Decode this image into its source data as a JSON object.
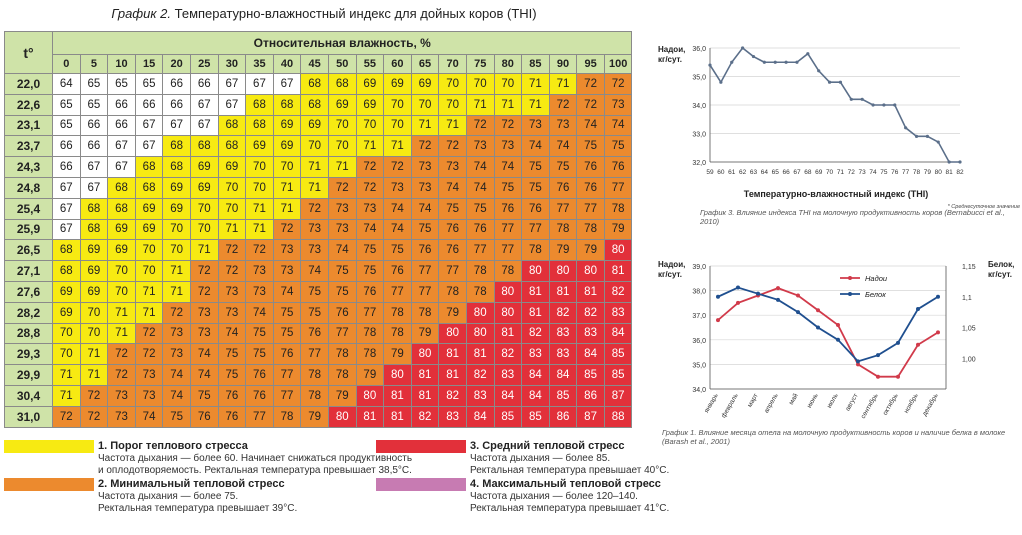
{
  "chart_data": [
    {
      "type": "table",
      "title_prefix": "График 2.",
      "title": "Температурно-влажностный индекс для дойных коров (THI)",
      "corner_label": "t°",
      "column_group_label": "Относительная влажность, %",
      "humidity": [
        0,
        5,
        10,
        15,
        20,
        25,
        30,
        35,
        40,
        45,
        50,
        55,
        60,
        65,
        70,
        75,
        80,
        85,
        90,
        95,
        100
      ],
      "temperatures": [
        "22,0",
        "22,6",
        "23,1",
        "23,7",
        "24,3",
        "24,8",
        "25,4",
        "25,9",
        "26,5",
        "27,1",
        "27,6",
        "28,2",
        "28,8",
        "29,3",
        "29,9",
        "30,4",
        "31,0"
      ],
      "rows": [
        [
          64,
          65,
          65,
          65,
          66,
          66,
          67,
          67,
          67,
          68,
          68,
          69,
          69,
          69,
          70,
          70,
          70,
          71,
          71,
          72,
          72
        ],
        [
          65,
          65,
          66,
          66,
          66,
          67,
          67,
          68,
          68,
          68,
          69,
          69,
          70,
          70,
          70,
          71,
          71,
          71,
          72,
          72,
          73
        ],
        [
          65,
          66,
          66,
          67,
          67,
          67,
          68,
          68,
          69,
          69,
          70,
          70,
          70,
          71,
          71,
          72,
          72,
          73,
          73,
          74,
          74
        ],
        [
          66,
          66,
          67,
          67,
          68,
          68,
          68,
          69,
          69,
          70,
          70,
          71,
          71,
          72,
          72,
          73,
          73,
          74,
          74,
          75,
          75
        ],
        [
          66,
          67,
          67,
          68,
          68,
          69,
          69,
          70,
          70,
          71,
          71,
          72,
          72,
          73,
          73,
          74,
          74,
          75,
          75,
          76,
          76
        ],
        [
          67,
          67,
          68,
          68,
          69,
          69,
          70,
          70,
          71,
          71,
          72,
          72,
          73,
          73,
          74,
          74,
          75,
          75,
          76,
          76,
          77
        ],
        [
          67,
          68,
          68,
          69,
          69,
          70,
          70,
          71,
          71,
          72,
          73,
          73,
          74,
          74,
          75,
          75,
          76,
          76,
          77,
          77,
          78
        ],
        [
          67,
          68,
          69,
          69,
          70,
          70,
          71,
          71,
          72,
          73,
          73,
          74,
          74,
          75,
          76,
          76,
          77,
          77,
          78,
          78,
          79
        ],
        [
          68,
          69,
          69,
          70,
          70,
          71,
          72,
          72,
          73,
          73,
          74,
          75,
          75,
          76,
          76,
          77,
          77,
          78,
          79,
          79,
          80
        ],
        [
          68,
          69,
          70,
          70,
          71,
          72,
          72,
          73,
          73,
          74,
          75,
          75,
          76,
          77,
          77,
          78,
          78,
          80,
          80,
          80,
          81
        ],
        [
          69,
          69,
          70,
          71,
          71,
          72,
          73,
          73,
          74,
          75,
          75,
          76,
          77,
          77,
          78,
          78,
          80,
          81,
          81,
          81,
          82
        ],
        [
          69,
          70,
          71,
          71,
          72,
          73,
          73,
          74,
          75,
          75,
          76,
          77,
          78,
          78,
          79,
          80,
          80,
          81,
          82,
          82,
          83
        ],
        [
          70,
          70,
          71,
          72,
          73,
          73,
          74,
          75,
          75,
          76,
          77,
          78,
          78,
          79,
          80,
          80,
          81,
          82,
          83,
          83,
          84
        ],
        [
          70,
          71,
          72,
          72,
          73,
          74,
          75,
          75,
          76,
          77,
          78,
          78,
          79,
          80,
          81,
          81,
          82,
          83,
          83,
          84,
          85
        ],
        [
          71,
          71,
          72,
          73,
          74,
          74,
          75,
          76,
          77,
          78,
          78,
          79,
          80,
          81,
          81,
          82,
          83,
          84,
          84,
          85,
          85
        ],
        [
          71,
          72,
          73,
          73,
          74,
          75,
          76,
          76,
          77,
          78,
          79,
          80,
          81,
          81,
          82,
          83,
          84,
          84,
          85,
          86,
          87
        ],
        [
          72,
          72,
          73,
          74,
          75,
          76,
          76,
          77,
          78,
          79,
          80,
          81,
          81,
          82,
          83,
          84,
          85,
          85,
          86,
          87,
          88
        ]
      ],
      "zone_colors": [
        "#ffffff",
        "#f7ea12",
        "#ec8a2e",
        "#e2303a",
        "#c77bb2"
      ],
      "legend": [
        {
          "title": "1. Порог теплового стресса",
          "color": "#f7ea12",
          "lines": [
            "Частота дыхания — более 60. Начинает снижаться продуктивность",
            "и оплодотворяемость. Ректальная температура превышает 38,5°С."
          ]
        },
        {
          "title": "2. Минимальный тепловой стресс",
          "color": "#ec8a2e",
          "lines": [
            "Частота дыхания — более 75.",
            "Ректальная температура превышает 39°С."
          ]
        },
        {
          "title": "3. Средний тепловой стресс",
          "color": "#e2303a",
          "lines": [
            "Частота дыхания — более 85.",
            "Ректальная температура превышает 40°С."
          ]
        },
        {
          "title": "4. Максимальный тепловой стресс",
          "color": "#c77bb2",
          "lines": [
            "Частота дыхания — более 120–140.",
            "Ректальная температура превышает 41°С."
          ]
        }
      ]
    },
    {
      "type": "line",
      "ylabel": "Надои, кг/сут.",
      "xlabel": "Температурно-влажностный индекс (THI)",
      "note": "* Среднесуточное значение",
      "caption": "График 3. Влияние индекса THI на молочную продуктивность коров (Bernabucci et al., 2010)",
      "x": [
        59,
        60,
        61,
        62,
        63,
        64,
        65,
        66,
        67,
        68,
        69,
        70,
        71,
        72,
        73,
        74,
        75,
        76,
        77,
        78,
        79,
        80,
        81,
        82
      ],
      "y": [
        35.4,
        34.8,
        35.5,
        36.0,
        35.7,
        35.5,
        35.5,
        35.5,
        35.5,
        35.8,
        35.2,
        34.8,
        34.8,
        34.2,
        34.2,
        34.0,
        34.0,
        34.0,
        33.2,
        32.9,
        32.9,
        32.7,
        32.0,
        32.0
      ],
      "xlim": [
        59,
        82
      ],
      "ylim": [
        32.0,
        36.0
      ],
      "yticks": [
        "32,0",
        "33,0",
        "34,0",
        "35,0",
        "36,0"
      ],
      "color": "#5b6f8a"
    },
    {
      "type": "line",
      "ylabel_left": "Надои, кг/сут.",
      "ylabel_right": "Белок, кг/сут.",
      "caption": "График 1. Влияние месяца отела на молочную продуктивность коров и наличие белка в молоке (Barash et al., 2001)",
      "categories": [
        "январь",
        "февраль",
        "март",
        "апрель",
        "май",
        "июнь",
        "июль",
        "август",
        "сентябрь",
        "октябрь",
        "ноябрь",
        "декабрь"
      ],
      "ylim_left": [
        34.0,
        39.0
      ],
      "yticks_left": [
        "34,0",
        "35,0",
        "36,0",
        "37,0",
        "38,0",
        "39,0"
      ],
      "ylim_right": [
        0.95,
        1.15
      ],
      "yticks_right": [
        "1,00",
        "1,05",
        "1,1",
        "1,15"
      ],
      "series": [
        {
          "name": "Надои",
          "axis": "left",
          "color": "#d13a4a",
          "values": [
            36.8,
            37.5,
            37.8,
            38.1,
            37.8,
            37.2,
            36.6,
            35.0,
            34.5,
            34.5,
            35.8,
            36.3
          ]
        },
        {
          "name": "Белок",
          "axis": "right",
          "color": "#1f4f8f",
          "values": [
            1.1,
            1.115,
            1.105,
            1.095,
            1.075,
            1.05,
            1.03,
            0.995,
            1.005,
            1.025,
            1.08,
            1.1
          ]
        }
      ]
    }
  ]
}
